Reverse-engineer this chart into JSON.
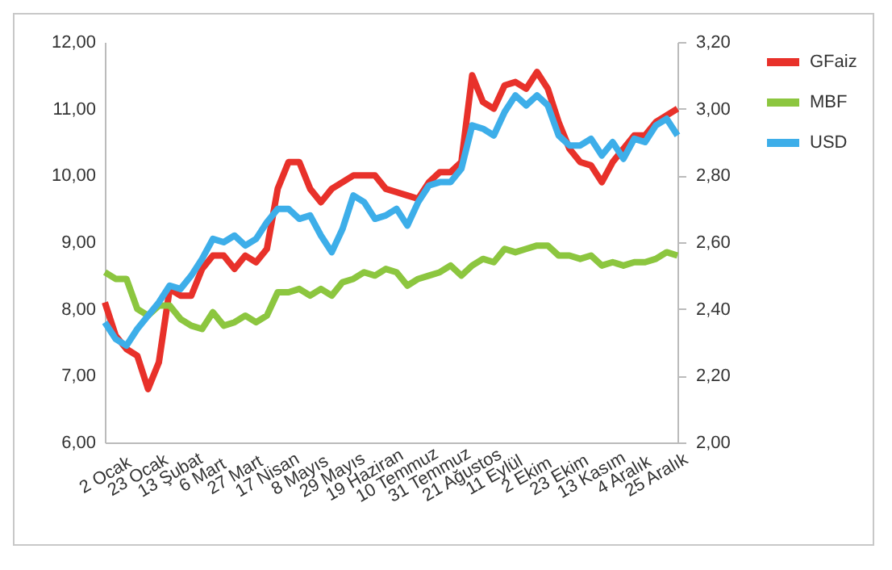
{
  "chart_data": {
    "type": "line",
    "categories": [
      "2 Ocak",
      null,
      null,
      "23 Ocak",
      null,
      null,
      "13 Şubat",
      null,
      null,
      "6 Mart",
      null,
      null,
      "27 Mart",
      null,
      null,
      "17 Nisan",
      null,
      null,
      "8 Mayıs",
      null,
      null,
      "29 Mayıs",
      null,
      null,
      "19 Haziran",
      null,
      null,
      "10 Temmuz",
      null,
      null,
      "31 Temmuz",
      null,
      null,
      "21 Ağustos",
      null,
      null,
      "11 Eylül",
      null,
      null,
      "2 Ekim",
      null,
      null,
      "23 Ekim",
      null,
      null,
      "13 Kasım",
      null,
      null,
      "4 Aralık",
      null,
      null,
      "25 Aralık",
      null,
      null
    ],
    "series": [
      {
        "name": "GFaiz",
        "color": "#e8312a",
        "values": [
          8.1,
          7.6,
          7.4,
          7.3,
          6.8,
          7.2,
          8.3,
          8.2,
          8.2,
          8.6,
          8.8,
          8.8,
          8.6,
          8.8,
          8.7,
          8.9,
          9.8,
          10.2,
          10.2,
          9.8,
          9.6,
          9.8,
          9.9,
          10.0,
          10.0,
          10.0,
          9.8,
          9.75,
          9.7,
          9.65,
          9.9,
          10.05,
          10.05,
          10.2,
          11.5,
          11.1,
          11.0,
          11.35,
          11.4,
          11.3,
          11.55,
          11.3,
          10.8,
          10.4,
          10.2,
          10.15,
          9.9,
          10.2,
          10.4,
          10.6,
          10.6,
          10.8,
          10.9,
          11.0
        ]
      },
      {
        "name": "MBF",
        "color": "#8cc63f",
        "values": [
          8.55,
          8.45,
          8.45,
          8.0,
          7.9,
          8.05,
          8.05,
          7.85,
          7.75,
          7.7,
          7.95,
          7.75,
          7.8,
          7.9,
          7.8,
          7.9,
          8.25,
          8.25,
          8.3,
          8.2,
          8.3,
          8.2,
          8.4,
          8.45,
          8.55,
          8.5,
          8.6,
          8.55,
          8.35,
          8.45,
          8.5,
          8.55,
          8.65,
          8.5,
          8.65,
          8.75,
          8.7,
          8.9,
          8.85,
          8.9,
          8.95,
          8.95,
          8.8,
          8.8,
          8.75,
          8.8,
          8.65,
          8.7,
          8.65,
          8.7,
          8.7,
          8.75,
          8.85,
          8.8
        ]
      },
      {
        "name": "USD",
        "color": "#3daee9",
        "axis": "y2",
        "values": [
          2.36,
          2.31,
          2.29,
          2.34,
          2.38,
          2.42,
          2.47,
          2.46,
          2.5,
          2.55,
          2.61,
          2.6,
          2.62,
          2.59,
          2.61,
          2.66,
          2.7,
          2.7,
          2.67,
          2.68,
          2.62,
          2.57,
          2.64,
          2.74,
          2.72,
          2.67,
          2.68,
          2.7,
          2.65,
          2.72,
          2.77,
          2.78,
          2.78,
          2.82,
          2.95,
          2.94,
          2.92,
          2.99,
          3.04,
          3.01,
          3.04,
          3.01,
          2.92,
          2.89,
          2.89,
          2.91,
          2.86,
          2.9,
          2.85,
          2.91,
          2.9,
          2.95,
          2.97,
          2.92
        ]
      }
    ],
    "ylim": [
      6,
      12
    ],
    "yticks": [
      {
        "value": 6,
        "label": "6,00"
      },
      {
        "value": 7,
        "label": "7,00"
      },
      {
        "value": 8,
        "label": "8,00"
      },
      {
        "value": 9,
        "label": "9,00"
      },
      {
        "value": 10,
        "label": "10,00"
      },
      {
        "value": 11,
        "label": "11,00"
      },
      {
        "value": 12,
        "label": "12,00"
      }
    ],
    "y2lim": [
      2,
      3.2
    ],
    "y2ticks": [
      {
        "value": 2,
        "label": "2,00"
      },
      {
        "value": 2.2,
        "label": "2,20"
      },
      {
        "value": 2.4,
        "label": "2,40"
      },
      {
        "value": 2.6,
        "label": "2,60"
      },
      {
        "value": 2.8,
        "label": "2,80"
      },
      {
        "value": 3,
        "label": "3,00"
      },
      {
        "value": 3.2,
        "label": "3,20"
      }
    ],
    "legend": "right",
    "line_style": "solid"
  }
}
